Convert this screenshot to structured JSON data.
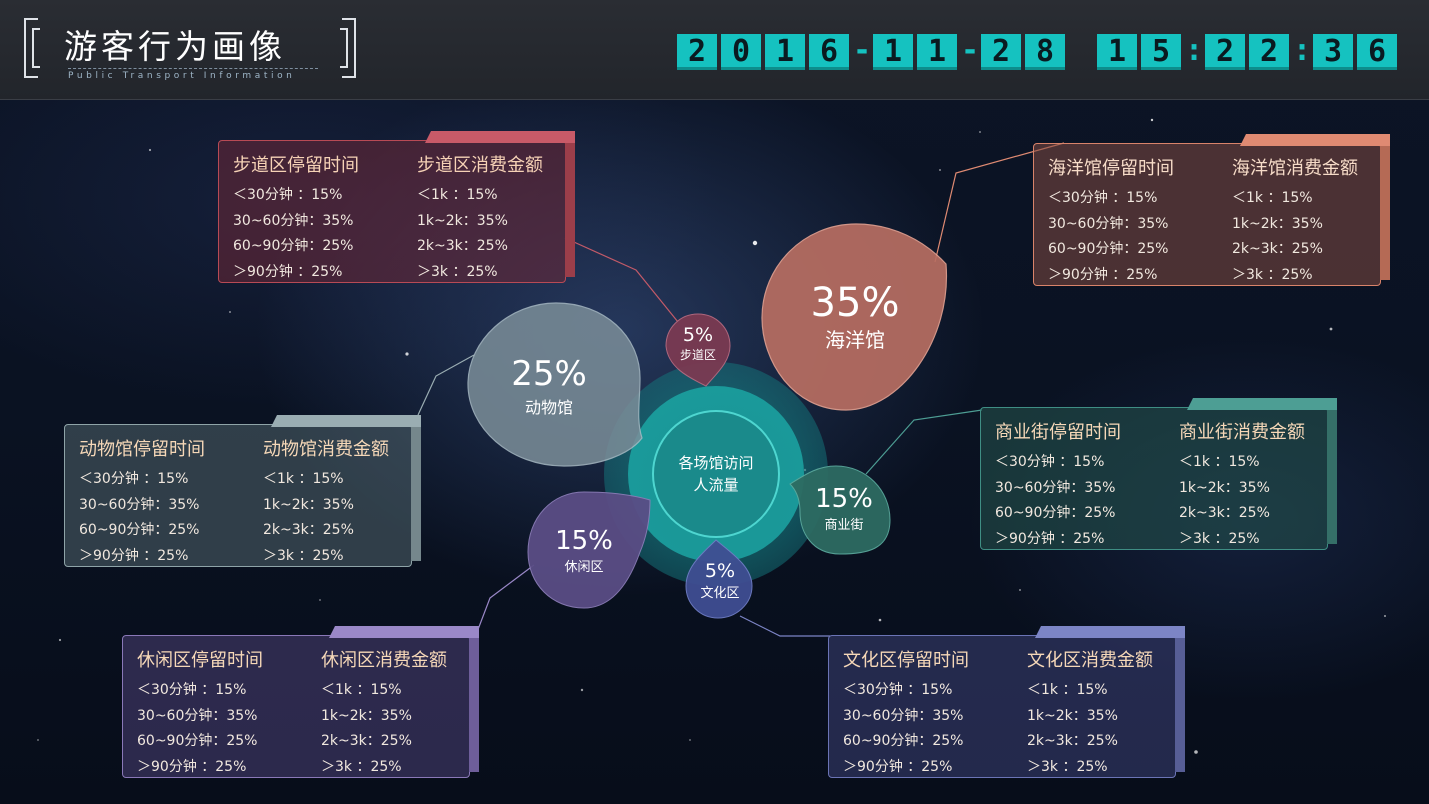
{
  "header": {
    "title": "游客行为画像",
    "subtitle": "Public Transport Information",
    "clock": {
      "date_digits": [
        "2",
        "0",
        "1",
        "6",
        "-",
        "1",
        "1",
        "-",
        "2",
        "8"
      ],
      "time_digits": [
        "1",
        "5",
        ":",
        "2",
        "2",
        ":",
        "3",
        "6"
      ]
    }
  },
  "center": {
    "line1": "各场馆访问",
    "line2": "人流量"
  },
  "bubbles": {
    "walkway": {
      "pct": "5%",
      "label": "步道区",
      "color": "#7a3a52"
    },
    "ocean": {
      "pct": "35%",
      "label": "海洋馆",
      "color": "#b86e62"
    },
    "zoo": {
      "pct": "25%",
      "label": "动物馆",
      "color": "#7b8e99"
    },
    "commerce": {
      "pct": "15%",
      "label": "商业街",
      "color": "#2d6b62"
    },
    "leisure": {
      "pct": "15%",
      "label": "休闲区",
      "color": "#5a4d85"
    },
    "culture": {
      "pct": "5%",
      "label": "文化区",
      "color": "#3f4e92"
    }
  },
  "panels": {
    "walkway": {
      "stay_title": "步道区停留时间",
      "spend_title": "步道区消费金额",
      "stay_rows": [
        "＜30分钟  ：15%",
        "30~60分钟：35%",
        "60~90分钟：25%",
        "＞90分钟  ：25%"
      ],
      "spend_rows": [
        "＜1k  ：15%",
        "1k~2k：35%",
        "2k~3k：25%",
        "＞3k  ：25%"
      ]
    },
    "ocean": {
      "stay_title": "海洋馆停留时间",
      "spend_title": "海洋馆消费金额",
      "stay_rows": [
        "＜30分钟  ：15%",
        "30~60分钟：35%",
        "60~90分钟：25%",
        "＞90分钟  ：25%"
      ],
      "spend_rows": [
        "＜1k  ：15%",
        "1k~2k：35%",
        "2k~3k：25%",
        "＞3k  ：25%"
      ]
    },
    "zoo": {
      "stay_title": "动物馆停留时间",
      "spend_title": "动物馆消费金额",
      "stay_rows": [
        "＜30分钟  ：15%",
        "30~60分钟：35%",
        "60~90分钟：25%",
        "＞90分钟  ：25%"
      ],
      "spend_rows": [
        "＜1k  ：15%",
        "1k~2k：35%",
        "2k~3k：25%",
        "＞3k  ：25%"
      ]
    },
    "commerce": {
      "stay_title": "商业街停留时间",
      "spend_title": "商业街消费金额",
      "stay_rows": [
        "＜30分钟  ：15%",
        "30~60分钟：35%",
        "60~90分钟：25%",
        "＞90分钟  ：25%"
      ],
      "spend_rows": [
        "＜1k  ：15%",
        "1k~2k：35%",
        "2k~3k：25%",
        "＞3k  ：25%"
      ]
    },
    "leisure": {
      "stay_title": "休闲区停留时间",
      "spend_title": "休闲区消费金额",
      "stay_rows": [
        "＜30分钟  ：15%",
        "30~60分钟：35%",
        "60~90分钟：25%",
        "＞90分钟  ：25%"
      ],
      "spend_rows": [
        "＜1k  ：15%",
        "1k~2k：35%",
        "2k~3k：25%",
        "＞3k  ：25%"
      ]
    },
    "culture": {
      "stay_title": "文化区停留时间",
      "spend_title": "文化区消费金额",
      "stay_rows": [
        "＜30分钟  ：15%",
        "30~60分钟：35%",
        "60~90分钟：25%",
        "＞90分钟  ：25%"
      ],
      "spend_rows": [
        "＜1k  ：15%",
        "1k~2k：35%",
        "2k~3k：25%",
        "＞3k  ：25%"
      ]
    }
  }
}
